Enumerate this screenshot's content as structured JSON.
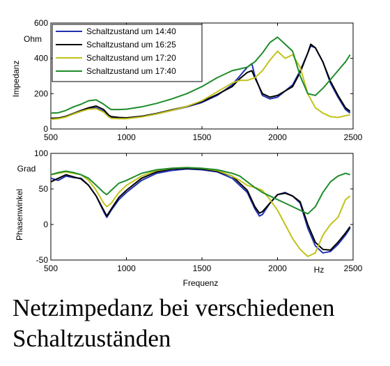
{
  "caption_line1": "Netzimpedanz bei verschiedenen",
  "caption_line2": "Schaltzuständen",
  "colors": {
    "blue": "#1f2fb0",
    "black": "#000000",
    "yellow": "#c2c21c",
    "green": "#1e8c2a"
  },
  "chart_data": [
    {
      "type": "line",
      "ylabel": "Impedanz",
      "yunit": "Ohm",
      "xlim": [
        500,
        2500
      ],
      "ylim": [
        0,
        600
      ],
      "xticks": [
        500,
        1000,
        1500,
        2000,
        2500
      ],
      "yticks": [
        0,
        200,
        400,
        600
      ],
      "grid": false,
      "legend": "top-left",
      "series": [
        {
          "name": "Schaltzustand um 14:40",
          "color": "#1f2fb0",
          "x": [
            500,
            550,
            600,
            650,
            700,
            750,
            800,
            850,
            880,
            900,
            950,
            1000,
            1100,
            1200,
            1300,
            1400,
            1500,
            1600,
            1700,
            1750,
            1800,
            1830,
            1850,
            1900,
            1950,
            2000,
            2100,
            2150,
            2200,
            2220,
            2250,
            2300,
            2350,
            2400,
            2450,
            2480
          ],
          "y": [
            55,
            60,
            70,
            85,
            100,
            115,
            120,
            100,
            75,
            65,
            62,
            60,
            70,
            85,
            105,
            125,
            150,
            190,
            250,
            300,
            350,
            370,
            300,
            190,
            170,
            180,
            250,
            330,
            430,
            470,
            460,
            380,
            260,
            180,
            110,
            90
          ]
        },
        {
          "name": "Schaltzustand um 16:25",
          "color": "#000000",
          "x": [
            500,
            550,
            600,
            650,
            700,
            750,
            800,
            850,
            880,
            900,
            950,
            1000,
            1100,
            1200,
            1300,
            1400,
            1500,
            1600,
            1700,
            1750,
            1800,
            1830,
            1850,
            1900,
            1950,
            2000,
            2100,
            2150,
            2200,
            2220,
            2250,
            2300,
            2350,
            2400,
            2450,
            2480
          ],
          "y": [
            60,
            62,
            72,
            88,
            105,
            120,
            130,
            110,
            80,
            70,
            65,
            63,
            72,
            88,
            108,
            128,
            155,
            195,
            240,
            285,
            320,
            330,
            290,
            200,
            180,
            190,
            240,
            320,
            430,
            480,
            460,
            380,
            270,
            190,
            120,
            100
          ]
        },
        {
          "name": "Schaltzustand um 17:20",
          "color": "#c2c21c",
          "x": [
            500,
            550,
            600,
            650,
            700,
            750,
            800,
            850,
            880,
            900,
            950,
            1000,
            1100,
            1200,
            1300,
            1400,
            1500,
            1600,
            1700,
            1750,
            1800,
            1850,
            1900,
            1950,
            2000,
            2050,
            2100,
            2150,
            2200,
            2250,
            2300,
            2350,
            2400,
            2450,
            2480
          ],
          "y": [
            55,
            58,
            68,
            85,
            100,
            112,
            115,
            95,
            70,
            60,
            58,
            58,
            68,
            85,
            105,
            128,
            160,
            210,
            260,
            275,
            275,
            290,
            330,
            390,
            440,
            400,
            420,
            350,
            200,
            120,
            90,
            70,
            65,
            75,
            80
          ]
        },
        {
          "name": "Schaltzustand um 17:40",
          "color": "#1e8c2a",
          "x": [
            500,
            550,
            600,
            650,
            700,
            750,
            800,
            850,
            880,
            900,
            950,
            1000,
            1100,
            1200,
            1300,
            1400,
            1500,
            1600,
            1700,
            1750,
            1800,
            1850,
            1900,
            1950,
            2000,
            2050,
            2100,
            2150,
            2200,
            2250,
            2300,
            2350,
            2400,
            2450,
            2480
          ],
          "y": [
            90,
            92,
            105,
            125,
            140,
            160,
            165,
            140,
            120,
            110,
            110,
            112,
            125,
            145,
            170,
            200,
            240,
            290,
            330,
            340,
            350,
            380,
            430,
            490,
            520,
            480,
            440,
            300,
            200,
            190,
            230,
            280,
            330,
            380,
            420
          ]
        }
      ]
    },
    {
      "type": "line",
      "xlabel": "Frequenz",
      "xunit": "Hz",
      "ylabel": "Phasenwinkel",
      "yunit": "Grad",
      "xlim": [
        500,
        2500
      ],
      "ylim": [
        -50,
        100
      ],
      "xticks": [
        500,
        1000,
        1500,
        2000,
        2500
      ],
      "yticks": [
        -50,
        0,
        50,
        100
      ],
      "grid": false,
      "series": [
        {
          "name": "Schaltzustand um 14:40",
          "color": "#1f2fb0",
          "x": [
            500,
            550,
            600,
            650,
            700,
            750,
            800,
            850,
            870,
            900,
            950,
            1000,
            1100,
            1200,
            1300,
            1400,
            1500,
            1600,
            1700,
            1750,
            1800,
            1850,
            1880,
            1900,
            1950,
            2000,
            2050,
            2100,
            2150,
            2200,
            2250,
            2300,
            2350,
            2400,
            2450,
            2480
          ],
          "y": [
            65,
            62,
            68,
            66,
            65,
            55,
            40,
            18,
            10,
            20,
            35,
            45,
            62,
            72,
            76,
            78,
            77,
            74,
            65,
            55,
            45,
            22,
            12,
            14,
            30,
            42,
            45,
            40,
            30,
            -5,
            -30,
            -40,
            -38,
            -28,
            -15,
            -5
          ]
        },
        {
          "name": "Schaltzustand um 16:25",
          "color": "#000000",
          "x": [
            500,
            550,
            600,
            650,
            700,
            750,
            800,
            850,
            870,
            900,
            950,
            1000,
            1100,
            1200,
            1300,
            1400,
            1500,
            1600,
            1700,
            1750,
            1800,
            1850,
            1880,
            1900,
            1950,
            2000,
            2050,
            2100,
            2150,
            2200,
            2250,
            2300,
            2350,
            2400,
            2450,
            2480
          ],
          "y": [
            60,
            65,
            70,
            67,
            64,
            55,
            40,
            20,
            12,
            22,
            38,
            48,
            65,
            74,
            78,
            79,
            78,
            75,
            68,
            58,
            48,
            25,
            16,
            18,
            30,
            42,
            44,
            40,
            32,
            0,
            -25,
            -35,
            -36,
            -25,
            -12,
            -3
          ]
        },
        {
          "name": "Schaltzustand um 17:20",
          "color": "#c2c21c",
          "x": [
            500,
            550,
            600,
            650,
            700,
            750,
            800,
            850,
            870,
            900,
            950,
            1000,
            1100,
            1200,
            1300,
            1400,
            1500,
            1600,
            1700,
            1750,
            1800,
            1850,
            1900,
            1950,
            2000,
            2050,
            2100,
            2150,
            2200,
            2250,
            2300,
            2350,
            2400,
            2450,
            2480
          ],
          "y": [
            70,
            72,
            74,
            72,
            70,
            62,
            48,
            30,
            25,
            30,
            45,
            55,
            68,
            76,
            79,
            80,
            79,
            76,
            68,
            62,
            55,
            52,
            48,
            35,
            20,
            0,
            -20,
            -35,
            -45,
            -40,
            -15,
            0,
            10,
            35,
            40
          ]
        },
        {
          "name": "Schaltzustand um 17:40",
          "color": "#1e8c2a",
          "x": [
            500,
            550,
            600,
            650,
            700,
            750,
            800,
            850,
            870,
            900,
            950,
            1000,
            1100,
            1200,
            1300,
            1400,
            1500,
            1600,
            1700,
            1750,
            1800,
            1850,
            1900,
            1950,
            2000,
            2050,
            2100,
            2150,
            2200,
            2250,
            2300,
            2350,
            2400,
            2450,
            2480
          ],
          "y": [
            70,
            73,
            75,
            73,
            70,
            65,
            55,
            45,
            42,
            48,
            58,
            62,
            72,
            77,
            79,
            80,
            79,
            77,
            72,
            68,
            60,
            52,
            45,
            40,
            35,
            30,
            25,
            20,
            15,
            25,
            45,
            60,
            68,
            72,
            70
          ]
        }
      ]
    }
  ]
}
